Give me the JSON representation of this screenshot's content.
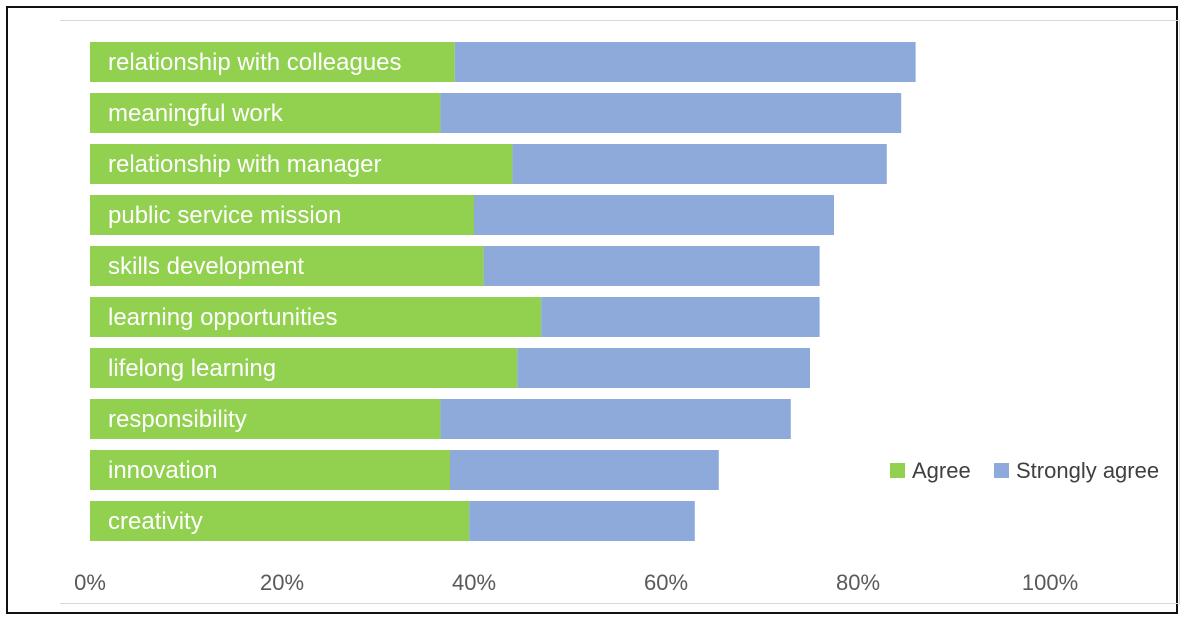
{
  "chart_data": {
    "type": "bar",
    "orientation": "horizontal",
    "stacked": true,
    "categories": [
      "relationship with colleagues",
      "meaningful work",
      "relationship with manager",
      "public service mission",
      "skills development",
      "learning opportunities",
      "lifelong learning",
      "responsibility",
      "innovation",
      "creativity"
    ],
    "series": [
      {
        "name": "Agree",
        "color": "#92d050",
        "values": [
          38,
          36.5,
          44,
          40,
          41,
          47,
          44.5,
          36.5,
          37.5,
          39.5
        ]
      },
      {
        "name": "Strongly agree",
        "color": "#8eaadb",
        "values": [
          48,
          48,
          39,
          37.5,
          35,
          29,
          30.5,
          36.5,
          28,
          23.5
        ]
      }
    ],
    "xlim": [
      0,
      100
    ],
    "xticks": [
      "0%",
      "20%",
      "40%",
      "60%",
      "80%",
      "100%"
    ],
    "legend_position": "right",
    "grid": false,
    "title": "",
    "xlabel": "",
    "ylabel": ""
  }
}
